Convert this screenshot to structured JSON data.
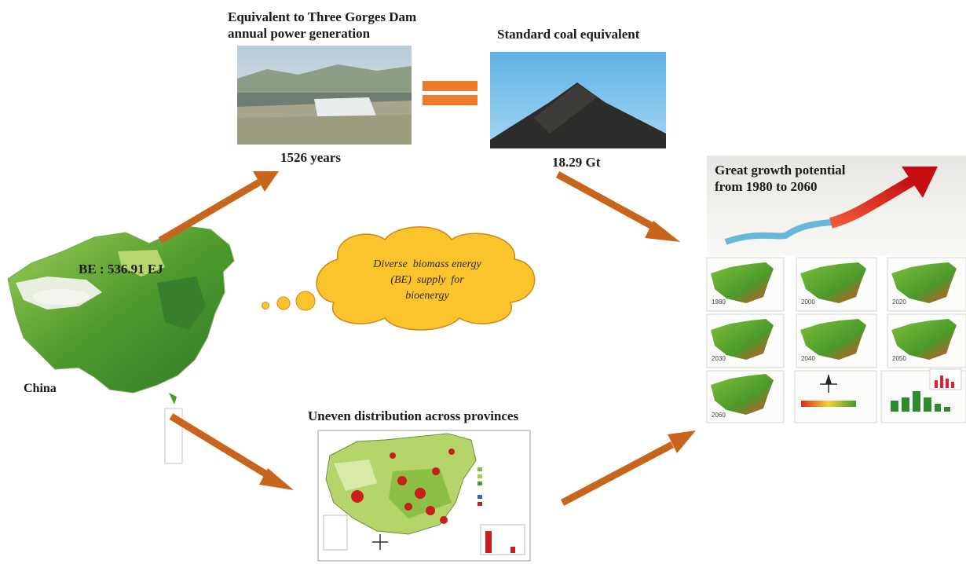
{
  "labels": {
    "dam_title": "Equivalent to Three Gorges Dam\nannual power generation",
    "dam_years": "1526 years",
    "coal_title": "Standard coal equivalent",
    "coal_amount": "18.29 Gt",
    "growth_title": "Great growth potential\nfrom 1980 to 2060",
    "be_total": "BE : 536.91 EJ",
    "china": "China",
    "cloud_text": "Diverse  biomass energy\n(BE)  supply  for\nbioenergy",
    "uneven_title": "Uneven distribution  across provinces"
  },
  "growth_years": [
    "1980",
    "2000",
    "2020",
    "2030",
    "2040",
    "2050",
    "2060"
  ],
  "colors": {
    "arrow": "#c8651c",
    "cloud": "#fbc32c",
    "equals": "#ee7a2c",
    "map_green": "#4c9a2a",
    "growth_arrow": "#d81c1c"
  }
}
